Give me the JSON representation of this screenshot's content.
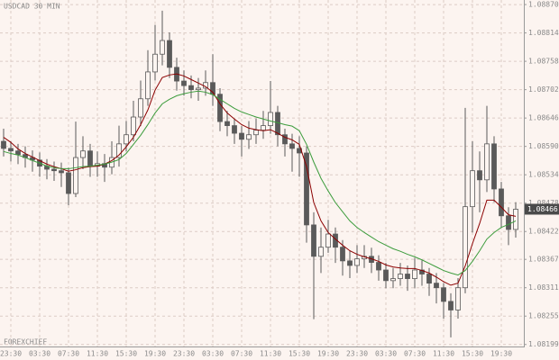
{
  "chart_data": {
    "type": "candlestick",
    "title": "USDCAD 30 MIN",
    "watermark": "FOREXCHIEF",
    "last_price": 1.08466,
    "grid": true,
    "categories": [
      null,
      "23:30",
      null,
      null,
      null,
      "03:30",
      null,
      null,
      null,
      "07:30",
      null,
      null,
      null,
      "11:30",
      null,
      null,
      null,
      "15:30",
      null,
      null,
      null,
      "19:30",
      null,
      null,
      null,
      "23:30",
      null,
      null,
      null,
      "03:30",
      null,
      null,
      null,
      "07:30",
      null,
      null,
      null,
      "11:30",
      null,
      null,
      null,
      "15:30",
      null,
      null,
      null,
      "19:30",
      null,
      null,
      null,
      "23:30",
      null,
      null,
      null,
      "03:30",
      null,
      null,
      null,
      "07:30",
      null,
      null,
      null,
      "11:30",
      null,
      null,
      null,
      "15:30",
      null,
      null,
      null,
      "19:30",
      null,
      null
    ],
    "open": [
      1.086,
      1.08586,
      1.08581,
      1.08574,
      1.08568,
      1.08563,
      1.08551,
      1.08545,
      1.08542,
      1.08538,
      1.08497,
      1.08568,
      1.08581,
      1.08551,
      1.08556,
      1.08549,
      1.08568,
      1.08595,
      1.08613,
      1.08648,
      1.08684,
      1.08737,
      1.08772,
      1.08799,
      1.08746,
      1.08719,
      1.0871,
      1.08702,
      1.08705,
      1.08716,
      1.08693,
      1.08639,
      1.08631,
      1.08616,
      1.08604,
      1.08613,
      1.08622,
      1.08631,
      1.08657,
      1.08613,
      1.08595,
      1.08586,
      1.08577,
      1.08435,
      1.08373,
      1.08391,
      1.08417,
      1.08391,
      1.08364,
      1.08355,
      1.08368,
      1.08373,
      1.08361,
      1.08346,
      1.08325,
      1.08329,
      1.08338,
      1.08329,
      1.08346,
      1.08338,
      1.0832,
      1.08311,
      1.08284,
      1.08267,
      1.08311,
      1.08471,
      1.08542,
      1.08524,
      1.08595,
      1.08506,
      1.08453,
      1.08426
    ],
    "high": [
      1.08625,
      1.086,
      1.08595,
      1.0859,
      1.08582,
      1.08578,
      1.08565,
      1.0856,
      1.08558,
      1.08548,
      1.08639,
      1.0861,
      1.08595,
      1.0858,
      1.08575,
      1.086,
      1.08631,
      1.0864,
      1.0868,
      1.0872,
      1.0878,
      1.0883,
      1.08858,
      1.08815,
      1.08765,
      1.0874,
      1.0873,
      1.08725,
      1.0874,
      1.08772,
      1.08705,
      1.0866,
      1.08645,
      1.0863,
      1.0864,
      1.08645,
      1.0866,
      1.08719,
      1.0867,
      1.08625,
      1.08615,
      1.0861,
      1.0859,
      1.0846,
      1.0843,
      1.08445,
      1.0843,
      1.08405,
      1.08385,
      1.08395,
      1.08395,
      1.0839,
      1.08375,
      1.0836,
      1.0835,
      1.0836,
      1.08355,
      1.0837,
      1.08365,
      1.0835,
      1.0834,
      1.0832,
      1.083,
      1.0833,
      1.08666,
      1.086,
      1.0858,
      1.0867,
      1.0861,
      1.0852,
      1.0847,
      1.0848
    ],
    "low": [
      1.0857,
      1.0856,
      1.08555,
      1.08548,
      1.0854,
      1.0853,
      1.08525,
      1.08522,
      1.0851,
      1.08474,
      1.0849,
      1.08545,
      1.0853,
      1.0853,
      1.0852,
      1.08535,
      1.0855,
      1.0858,
      1.086,
      1.0863,
      1.0867,
      1.0872,
      1.0875,
      1.08725,
      1.087,
      1.0869,
      1.08685,
      1.0868,
      1.0869,
      1.0867,
      1.0862,
      1.0861,
      1.08595,
      1.0857,
      1.08585,
      1.08595,
      1.08605,
      1.08615,
      1.0859,
      1.0857,
      1.0854,
      1.0853,
      1.084,
      1.08249,
      1.0834,
      1.0838,
      1.0836,
      1.08335,
      1.0833,
      1.0834,
      1.0835,
      1.0834,
      1.08325,
      1.0831,
      1.0831,
      1.08315,
      1.08305,
      1.0831,
      1.08315,
      1.08295,
      1.0828,
      1.0825,
      1.08213,
      1.0825,
      1.083,
      1.0842,
      1.0846,
      1.085,
      1.0848,
      1.0843,
      1.08395,
      1.0841
    ],
    "close": [
      1.08586,
      1.08581,
      1.08574,
      1.08568,
      1.08563,
      1.08551,
      1.08545,
      1.08542,
      1.08538,
      1.08497,
      1.08568,
      1.08581,
      1.08551,
      1.08556,
      1.08549,
      1.08568,
      1.08595,
      1.08613,
      1.08648,
      1.08684,
      1.08737,
      1.08772,
      1.08799,
      1.08746,
      1.08719,
      1.0871,
      1.08702,
      1.08705,
      1.08716,
      1.08693,
      1.08639,
      1.08631,
      1.08616,
      1.08604,
      1.08613,
      1.08622,
      1.08631,
      1.08657,
      1.08613,
      1.08595,
      1.08586,
      1.08577,
      1.08435,
      1.08373,
      1.08391,
      1.08417,
      1.08391,
      1.08364,
      1.08355,
      1.08368,
      1.08373,
      1.08361,
      1.08346,
      1.08325,
      1.08329,
      1.08338,
      1.08329,
      1.08346,
      1.08338,
      1.0832,
      1.08311,
      1.08284,
      1.08267,
      1.08311,
      1.08471,
      1.08542,
      1.08524,
      1.08595,
      1.08506,
      1.08453,
      1.08426,
      1.08466
    ],
    "candle_color": "#5a5a5a",
    "up_fill": "#fdf5f1",
    "series": [
      {
        "color": "#8b0000",
        "values": [
          1.08608,
          1.08598,
          1.08585,
          1.08576,
          1.08569,
          1.08562,
          1.08555,
          1.0855,
          1.08546,
          1.08541,
          1.08544,
          1.08548,
          1.0855,
          1.08551,
          1.08555,
          1.08562,
          1.08573,
          1.08589,
          1.08608,
          1.08633,
          1.08662,
          1.08701,
          1.08726,
          1.08731,
          1.08733,
          1.08729,
          1.08722,
          1.08715,
          1.08708,
          1.08697,
          1.08674,
          1.08656,
          1.08644,
          1.08633,
          1.08626,
          1.08623,
          1.08621,
          1.08623,
          1.08616,
          1.08608,
          1.08603,
          1.08594,
          1.0855,
          1.08479,
          1.08443,
          1.0842,
          1.08407,
          1.08395,
          1.08384,
          1.08377,
          1.08372,
          1.08368,
          1.08363,
          1.08356,
          1.08352,
          1.0835,
          1.08349,
          1.08349,
          1.08345,
          1.0834,
          1.08332,
          1.08323,
          1.08316,
          1.0832,
          1.08354,
          1.08398,
          1.08438,
          1.08484,
          1.08484,
          1.0847,
          1.08455,
          1.08452
        ]
      },
      {
        "color": "#3c9c3c",
        "values": [
          1.0858,
          1.08576,
          1.08573,
          1.08568,
          1.08562,
          1.08557,
          1.08551,
          1.08548,
          1.08546,
          1.08546,
          1.08548,
          1.0855,
          1.08551,
          1.08553,
          1.08555,
          1.08559,
          1.08564,
          1.08576,
          1.08594,
          1.08612,
          1.08633,
          1.08656,
          1.08674,
          1.08683,
          1.0869,
          1.08694,
          1.08697,
          1.08699,
          1.08697,
          1.08692,
          1.08683,
          1.08674,
          1.08665,
          1.08658,
          1.08653,
          1.08648,
          1.08644,
          1.0864,
          1.08637,
          1.08633,
          1.0863,
          1.08621,
          1.08594,
          1.08559,
          1.08527,
          1.08502,
          1.08479,
          1.08461,
          1.08443,
          1.0843,
          1.0842,
          1.08411,
          1.08402,
          1.08395,
          1.08388,
          1.08383,
          1.08377,
          1.08372,
          1.08366,
          1.08359,
          1.08352,
          1.08345,
          1.0834,
          1.08336,
          1.08345,
          1.08363,
          1.08384,
          1.08407,
          1.0842,
          1.0843,
          1.08436,
          1.08443
        ]
      }
    ],
    "ylim": [
      1.08195,
      1.08879
    ],
    "yticks": [
      {
        "value": 1.0887,
        "label": "1.08870"
      },
      {
        "value": 1.08814,
        "label": "1.08814"
      },
      {
        "value": 1.08758,
        "label": "1.08758"
      },
      {
        "value": 1.08702,
        "label": "1.08702"
      },
      {
        "value": 1.08646,
        "label": "1.08646"
      },
      {
        "value": 1.0859,
        "label": "1.08590"
      },
      {
        "value": 1.08534,
        "label": "1.08534"
      },
      {
        "value": 1.08478,
        "label": "1.08478"
      },
      {
        "value": 1.08422,
        "label": "1.08422"
      },
      {
        "value": 1.08367,
        "label": "1.08367"
      },
      {
        "value": 1.08311,
        "label": "1.08311"
      },
      {
        "value": 1.08255,
        "label": "1.08255"
      },
      {
        "value": 1.08199,
        "label": "1.08199"
      }
    ]
  }
}
